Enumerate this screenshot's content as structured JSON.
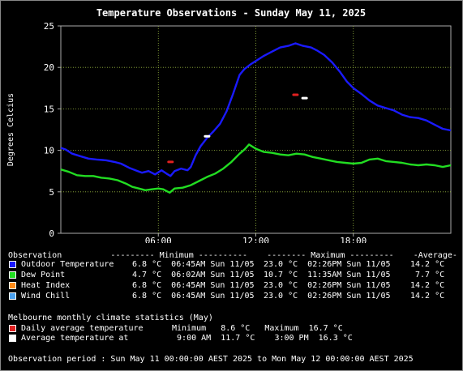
{
  "chart_data": {
    "type": "line",
    "title": "Temperature Observations - Sunday May 11, 2025",
    "ylabel": "Degrees Celcius",
    "xlabel": "",
    "ylim": [
      0,
      25
    ],
    "yticks": [
      0,
      5,
      10,
      15,
      20,
      25
    ],
    "xlim_hours": [
      0,
      24
    ],
    "xticks": [
      {
        "hour": 6,
        "label": "06:00"
      },
      {
        "hour": 12,
        "label": "12:00"
      },
      {
        "hour": 18,
        "label": "18:00"
      }
    ],
    "grid": true,
    "series": [
      {
        "name": "Outdoor Temperature",
        "color": "#1a1aff",
        "points": [
          [
            0.0,
            10.3
          ],
          [
            0.3,
            10.1
          ],
          [
            0.7,
            9.6
          ],
          [
            1.2,
            9.3
          ],
          [
            1.7,
            9.0
          ],
          [
            2.2,
            8.9
          ],
          [
            2.8,
            8.8
          ],
          [
            3.3,
            8.6
          ],
          [
            3.7,
            8.4
          ],
          [
            4.2,
            7.9
          ],
          [
            4.6,
            7.6
          ],
          [
            5.0,
            7.3
          ],
          [
            5.4,
            7.5
          ],
          [
            5.8,
            7.1
          ],
          [
            6.2,
            7.6
          ],
          [
            6.5,
            7.2
          ],
          [
            6.75,
            6.9
          ],
          [
            7.0,
            7.5
          ],
          [
            7.4,
            7.8
          ],
          [
            7.8,
            7.6
          ],
          [
            8.0,
            8.0
          ],
          [
            8.3,
            9.4
          ],
          [
            8.6,
            10.5
          ],
          [
            9.0,
            11.5
          ],
          [
            9.4,
            12.3
          ],
          [
            9.8,
            13.2
          ],
          [
            10.2,
            14.7
          ],
          [
            10.6,
            16.8
          ],
          [
            11.0,
            19.1
          ],
          [
            11.3,
            19.8
          ],
          [
            11.7,
            20.4
          ],
          [
            12.1,
            20.9
          ],
          [
            12.5,
            21.4
          ],
          [
            13.0,
            21.9
          ],
          [
            13.5,
            22.4
          ],
          [
            14.0,
            22.6
          ],
          [
            14.44,
            22.9
          ],
          [
            14.9,
            22.6
          ],
          [
            15.4,
            22.4
          ],
          [
            15.8,
            22.0
          ],
          [
            16.2,
            21.5
          ],
          [
            16.7,
            20.6
          ],
          [
            17.2,
            19.4
          ],
          [
            17.6,
            18.3
          ],
          [
            18.0,
            17.5
          ],
          [
            18.5,
            16.8
          ],
          [
            19.0,
            16.0
          ],
          [
            19.5,
            15.4
          ],
          [
            20.0,
            15.1
          ],
          [
            20.5,
            14.8
          ],
          [
            21.0,
            14.3
          ],
          [
            21.5,
            14.0
          ],
          [
            22.0,
            13.9
          ],
          [
            22.5,
            13.6
          ],
          [
            23.0,
            13.1
          ],
          [
            23.5,
            12.6
          ],
          [
            24.0,
            12.4
          ]
        ]
      },
      {
        "name": "Dew Point",
        "color": "#22dd22",
        "points": [
          [
            0.0,
            7.7
          ],
          [
            0.5,
            7.4
          ],
          [
            1.0,
            7.0
          ],
          [
            1.5,
            6.9
          ],
          [
            2.0,
            6.9
          ],
          [
            2.5,
            6.7
          ],
          [
            3.0,
            6.6
          ],
          [
            3.5,
            6.4
          ],
          [
            4.0,
            6.0
          ],
          [
            4.4,
            5.6
          ],
          [
            4.8,
            5.4
          ],
          [
            5.2,
            5.2
          ],
          [
            5.6,
            5.3
          ],
          [
            6.0,
            5.4
          ],
          [
            6.3,
            5.3
          ],
          [
            6.5,
            5.1
          ],
          [
            6.7,
            4.9
          ],
          [
            7.0,
            5.4
          ],
          [
            7.5,
            5.5
          ],
          [
            8.0,
            5.8
          ],
          [
            8.5,
            6.3
          ],
          [
            9.0,
            6.8
          ],
          [
            9.5,
            7.2
          ],
          [
            10.0,
            7.8
          ],
          [
            10.5,
            8.6
          ],
          [
            11.0,
            9.6
          ],
          [
            11.3,
            10.1
          ],
          [
            11.58,
            10.7
          ],
          [
            12.0,
            10.2
          ],
          [
            12.5,
            9.8
          ],
          [
            13.0,
            9.7
          ],
          [
            13.5,
            9.5
          ],
          [
            14.0,
            9.4
          ],
          [
            14.5,
            9.6
          ],
          [
            15.0,
            9.5
          ],
          [
            15.5,
            9.2
          ],
          [
            16.0,
            9.0
          ],
          [
            16.5,
            8.8
          ],
          [
            17.0,
            8.6
          ],
          [
            17.5,
            8.5
          ],
          [
            18.0,
            8.4
          ],
          [
            18.5,
            8.5
          ],
          [
            19.0,
            8.9
          ],
          [
            19.5,
            9.0
          ],
          [
            20.0,
            8.7
          ],
          [
            20.5,
            8.6
          ],
          [
            21.0,
            8.5
          ],
          [
            21.5,
            8.3
          ],
          [
            22.0,
            8.2
          ],
          [
            22.5,
            8.3
          ],
          [
            23.0,
            8.2
          ],
          [
            23.5,
            8.0
          ],
          [
            24.0,
            8.2
          ]
        ]
      }
    ],
    "climate_markers": [
      {
        "name": "Daily average temperature",
        "type": "dash",
        "color": "#e02020",
        "points": [
          [
            6.75,
            8.6
          ],
          [
            14.44,
            16.7
          ]
        ]
      },
      {
        "name": "Average temperature at",
        "type": "dash",
        "color": "#ffffff",
        "points": [
          [
            9.0,
            11.7
          ],
          [
            15.0,
            16.3
          ]
        ]
      }
    ]
  },
  "legend": {
    "header": "Observation          --------- Minimum ----------    -------- Maximum ---------    -Average-",
    "rows": [
      {
        "label": "Outdoor Temperature",
        "min": " 6.8 °C  06:45AM Sun 11/05",
        "max": "23.0 °C  02:26PM Sun 11/05",
        "avg": "14.2 °C",
        "color": "#1a1aff"
      },
      {
        "label": "Dew Point",
        "min": " 4.7 °C  06:02AM Sun 11/05",
        "max": "10.7 °C  11:35AM Sun 11/05",
        "avg": " 7.7 °C",
        "color": "#22dd22"
      },
      {
        "label": "Heat Index",
        "min": " 6.8 °C  06:45AM Sun 11/05",
        "max": "23.0 °C  02:26PM Sun 11/05",
        "avg": "14.2 °C",
        "color": "#ff8c1a"
      },
      {
        "label": "Wind Chill",
        "min": " 6.8 °C  06:45AM Sun 11/05",
        "max": "23.0 °C  02:26PM Sun 11/05",
        "avg": "14.2 °C",
        "color": "#4aa0ee"
      }
    ]
  },
  "climate": {
    "heading": "Melbourne monthly climate statistics (May)",
    "daily_label": "Daily average temperature",
    "daily_stats": "Minimum   8.6 °C   Maximum  16.7 °C",
    "daily_color": "#e02020",
    "at_label": "Average temperature at",
    "at_stats": "  9:00 AM  11.7 °C    3:00 PM  16.3 °C",
    "at_color": "#ffffff"
  },
  "footer": "Observation period : Sun May 11 00:00:00 AEST 2025 to Mon May 12 00:00:00 AEST 2025"
}
